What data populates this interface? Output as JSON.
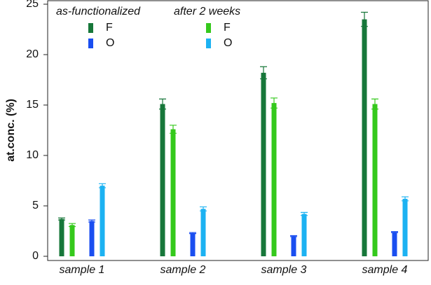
{
  "chart_data": {
    "type": "bar",
    "y_label": "at.conc. (%)",
    "categories": [
      "sample 1",
      "sample 2",
      "sample 3",
      "sample 4"
    ],
    "ylim": [
      0,
      25
    ],
    "yticks": [
      0,
      5,
      10,
      15,
      20,
      25
    ],
    "series_groups": [
      {
        "title": "as-functionalized",
        "series": [
          {
            "name": "F",
            "color": "#17773a",
            "values": [
              3.7,
              15.1,
              18.2,
              23.5
            ],
            "errors": [
              0.1,
              0.5,
              0.6,
              0.7
            ]
          },
          {
            "name": "O",
            "color": "#1a4ef0",
            "values": [
              3.5,
              2.3,
              2.0,
              2.4
            ],
            "errors": [
              0.1,
              0.05,
              0.05,
              0.05
            ]
          }
        ]
      },
      {
        "title": "after 2 weeks",
        "series": [
          {
            "name": "F",
            "color": "#35c91c",
            "values": [
              3.1,
              12.6,
              15.2,
              15.1
            ],
            "errors": [
              0.15,
              0.4,
              0.5,
              0.5
            ]
          },
          {
            "name": "O",
            "color": "#1cb2f2",
            "values": [
              7.0,
              4.7,
              4.2,
              5.7
            ],
            "errors": [
              0.2,
              0.2,
              0.15,
              0.2
            ]
          }
        ]
      }
    ]
  }
}
